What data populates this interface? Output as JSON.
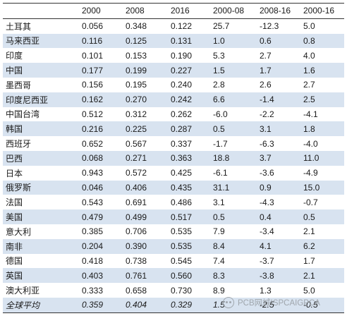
{
  "table": {
    "headers": [
      "",
      "2000",
      "2008",
      "2016",
      "2000-08",
      "2008-16",
      "2000-16"
    ],
    "rows": [
      [
        "土耳其",
        "0.056",
        "0.348",
        "0.122",
        "25.7",
        "-12.3",
        "5.0"
      ],
      [
        "马来西亚",
        "0.116",
        "0.125",
        "0.131",
        "1.0",
        "0.6",
        "0.8"
      ],
      [
        "印度",
        "0.101",
        "0.153",
        "0.190",
        "5.3",
        "2.7",
        "4.0"
      ],
      [
        "中国",
        "0.177",
        "0.199",
        "0.227",
        "1.5",
        "1.7",
        "1.6"
      ],
      [
        "墨西哥",
        "0.156",
        "0.195",
        "0.240",
        "2.8",
        "2.6",
        "2.7"
      ],
      [
        "印度尼西亚",
        "0.162",
        "0.270",
        "0.242",
        "6.6",
        "-1.4",
        "2.5"
      ],
      [
        "中国台湾",
        "0.512",
        "0.312",
        "0.262",
        "-6.0",
        "-2.2",
        "-4.1"
      ],
      [
        "韩国",
        "0.216",
        "0.225",
        "0.287",
        "0.5",
        "3.1",
        "1.8"
      ],
      [
        "西班牙",
        "0.652",
        "0.567",
        "0.337",
        "-1.7",
        "-6.3",
        "-4.0"
      ],
      [
        "巴西",
        "0.068",
        "0.271",
        "0.363",
        "18.8",
        "3.7",
        "11.0"
      ],
      [
        "日本",
        "0.943",
        "0.572",
        "0.425",
        "-6.1",
        "-3.6",
        "-4.9"
      ],
      [
        "俄罗斯",
        "0.046",
        "0.406",
        "0.435",
        "31.1",
        "0.9",
        "15.0"
      ],
      [
        "法国",
        "0.543",
        "0.691",
        "0.486",
        "3.1",
        "-4.3",
        "-0.7"
      ],
      [
        "美国",
        "0.479",
        "0.499",
        "0.517",
        "0.5",
        "0.4",
        "0.5"
      ],
      [
        "意大利",
        "0.385",
        "0.706",
        "0.535",
        "7.9",
        "-3.4",
        "2.1"
      ],
      [
        "南非",
        "0.204",
        "0.390",
        "0.535",
        "8.4",
        "4.1",
        "6.2"
      ],
      [
        "德国",
        "0.418",
        "0.738",
        "0.545",
        "7.4",
        "-3.7",
        "1.7"
      ],
      [
        "英国",
        "0.403",
        "0.761",
        "0.560",
        "8.3",
        "-3.8",
        "2.1"
      ],
      [
        "澳大利亚",
        "0.333",
        "0.658",
        "0.730",
        "8.9",
        "1.3",
        "5.0"
      ],
      [
        "全球平均",
        "0.359",
        "0.404",
        "0.329",
        "1.5",
        "-2.5",
        "-0.5"
      ]
    ]
  },
  "watermark": {
    "text": "PCB网城ISPCAIGPCA",
    "icon": "wechat-icon"
  }
}
